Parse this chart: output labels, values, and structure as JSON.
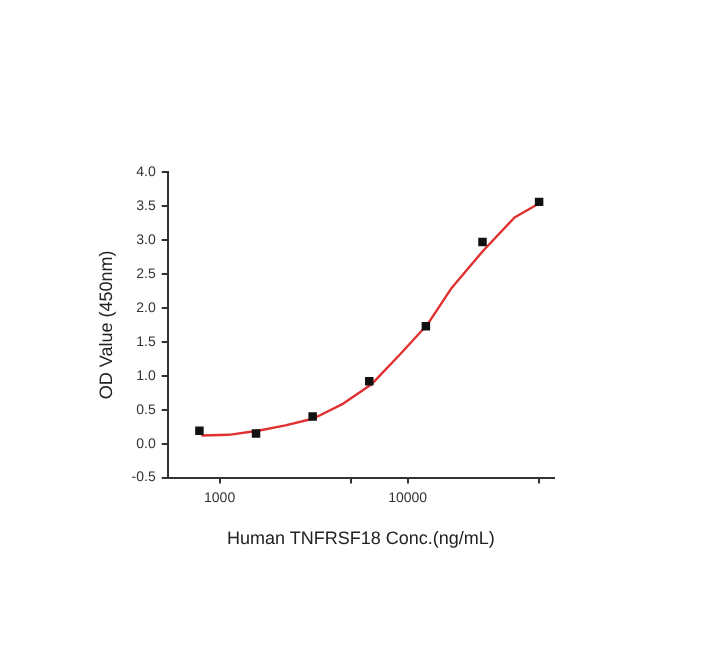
{
  "chart_data": {
    "type": "scatter",
    "xlabel": "Human TNFRSF18 Conc.(ng/mL)",
    "ylabel": "OD Value (450nm)",
    "log": "x",
    "xlim": [
      530,
      60000
    ],
    "xticks": [
      1000,
      {
        "value": 5000,
        "label": null
      },
      10000,
      {
        "value": 50000,
        "label": null
      }
    ],
    "ylim": [
      -0.5,
      4.0
    ],
    "yticks": [
      -0.5,
      {
        "value": 0,
        "label": "0.0"
      },
      0.5,
      {
        "value": 1,
        "label": "1.0"
      },
      1.5,
      {
        "value": 2,
        "label": "2.0"
      },
      2.5,
      {
        "value": 3,
        "label": "3.0"
      },
      3.5,
      {
        "value": 4,
        "label": "4.0"
      }
    ],
    "grid": false,
    "legend": false,
    "series": [
      {
        "type": "scatter",
        "color": "#111111",
        "marker": "square",
        "x": [
          781.25,
          1562.5,
          3125,
          6250,
          12500,
          25000,
          50000
        ],
        "values": [
          0.19,
          0.15,
          0.4,
          0.92,
          1.73,
          2.97,
          3.56
        ]
      },
      {
        "type": "line",
        "color": "#e03030",
        "marker": "none",
        "line_style": "solid",
        "x": [
          800,
          1120,
          1600,
          2240,
          3160,
          4550,
          6400,
          9150,
          12700,
          17000,
          25000,
          37000,
          51000
        ],
        "values": [
          0.12,
          0.13,
          0.19,
          0.27,
          0.37,
          0.59,
          0.87,
          1.32,
          1.75,
          2.28,
          2.83,
          3.33,
          3.55
        ]
      }
    ]
  }
}
